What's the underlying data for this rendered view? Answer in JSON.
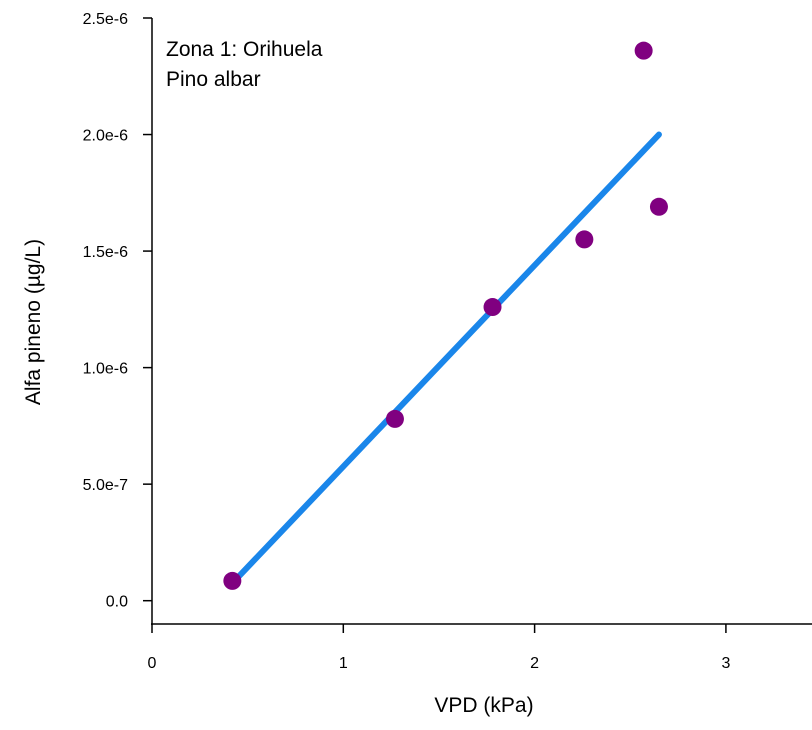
{
  "chart_data": {
    "type": "scatter",
    "title": "",
    "xlabel": "VPD (kPa)",
    "ylabel": "Alfa pineno (µg/L)",
    "annotations": [
      "Zona 1: Orihuela",
      "Pino albar"
    ],
    "xlim": [
      0,
      3.45
    ],
    "ylim": [
      -1e-07,
      2.5e-06
    ],
    "x_ticks": [
      0,
      1,
      2,
      3
    ],
    "x_tick_labels": [
      "0",
      "1",
      "2",
      "3"
    ],
    "y_ticks": [
      0,
      5e-07,
      1e-06,
      1.5e-06,
      2e-06,
      2.5e-06
    ],
    "y_tick_labels": [
      "0.0",
      "5.0e-7",
      "1.0e-6",
      "1.5e-6",
      "2.0e-6",
      "2.5e-6"
    ],
    "grid": false,
    "series": [
      {
        "type": "scatter",
        "color": "#800080",
        "points": [
          {
            "x": 0.42,
            "y": 8.5e-08
          },
          {
            "x": 1.27,
            "y": 7.8e-07
          },
          {
            "x": 1.78,
            "y": 1.26e-06
          },
          {
            "x": 2.26,
            "y": 1.55e-06
          },
          {
            "x": 2.57,
            "y": 2.36e-06
          },
          {
            "x": 2.65,
            "y": 1.69e-06
          }
        ]
      },
      {
        "type": "line",
        "color": "#1a86ea",
        "points": [
          {
            "x": 0.42,
            "y": 7.5e-08
          },
          {
            "x": 2.65,
            "y": 2e-06
          }
        ]
      }
    ]
  }
}
